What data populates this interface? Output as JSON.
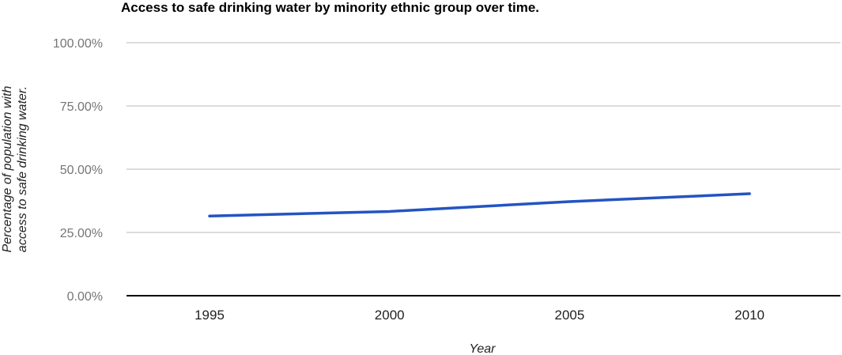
{
  "chart_data": {
    "type": "line",
    "title": "Access to safe drinking water by minority ethnic group over time.",
    "xlabel": "Year",
    "ylabel_lines": [
      "Percentage of population with",
      "access to safe drinking water."
    ],
    "x": [
      "1995",
      "2000",
      "2005",
      "2010"
    ],
    "series": [
      {
        "values": [
          31.5,
          33.3,
          37.2,
          40.3
        ],
        "color": "#2354c2"
      }
    ],
    "ylim": [
      0,
      100
    ],
    "yticks": [
      0,
      25,
      50,
      75,
      100
    ],
    "ytick_labels": [
      "0.00%",
      "25.00%",
      "50.00%",
      "75.00%",
      "100.00%"
    ],
    "grid": true,
    "gridline_color": "#c8c8c8",
    "axis_color": "#000000"
  }
}
